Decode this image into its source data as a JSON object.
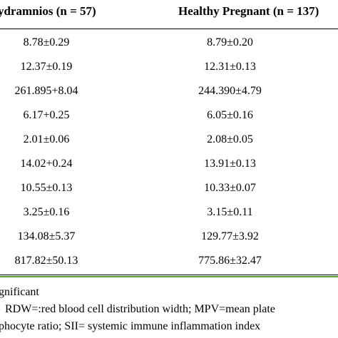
{
  "table": {
    "headers": {
      "col_a": "ydramnios (n = 57)",
      "col_b": "Healthy Pregnant (n = 137)"
    },
    "rows": [
      {
        "a": "8.78±0.29",
        "b": "8.79±0.20"
      },
      {
        "a": "12.37±0.19",
        "b": "12.31±0.13"
      },
      {
        "a": "261.895+8.04",
        "b": "244.390±4.79"
      },
      {
        "a": "6.17+0.25",
        "b": "6.05±0.16"
      },
      {
        "a": "2.01±0.06",
        "b": "2.08±0.05"
      },
      {
        "a": "14.02+0.24",
        "b": "13.91±0.13"
      },
      {
        "a": "10.55±0.13",
        "b": "10.33±0.07"
      },
      {
        "a": "3.25±0.16",
        "b": "3.15±0.11"
      },
      {
        "a": "134.08±5.37",
        "b": "129.77±3.92"
      },
      {
        "a": "817.82±50.13",
        "b": "775.86±32.47"
      }
    ]
  },
  "footnotes": {
    "line1": "gnificant",
    "line2": "RDW=:red blood cell distribution width; MPV=mean plate",
    "line3": "phocyte ratio; SII=  systemic immune inflammation index"
  },
  "colors": {
    "rule": "#000000",
    "accent_rule": "#5c9e3c"
  }
}
